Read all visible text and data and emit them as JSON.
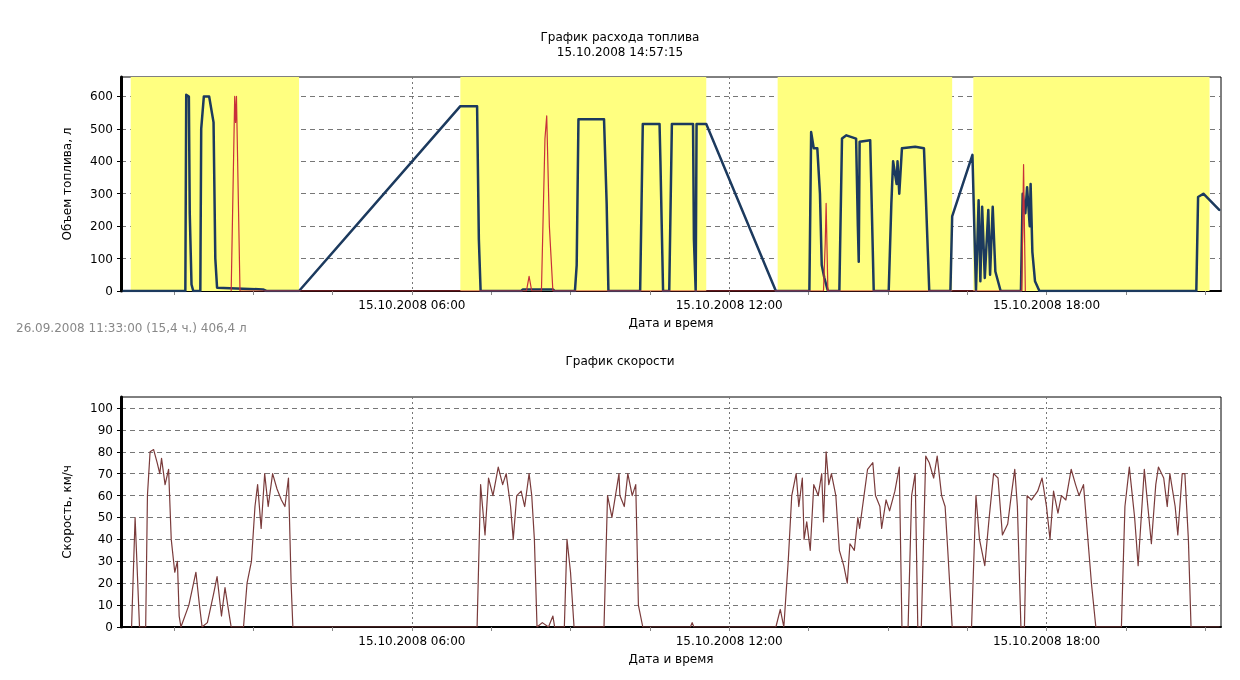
{
  "chart_data": [
    {
      "type": "line",
      "title": "График расхода топлива",
      "subtitle": "15.10.2008 14:57:15",
      "xlabel": "Дата и время",
      "ylabel": "Объем топлива, л",
      "annotations": [
        "26.09.2008 11:33:00 (15,4 ч.) 406,4 л"
      ],
      "xlim": [
        "2008-10-15T00:30",
        "2008-10-15T21:18"
      ],
      "xticks": [
        {
          "value": "2008-10-15T01:30",
          "label": null
        },
        {
          "value": "2008-10-15T03:00",
          "label": null
        },
        {
          "value": "2008-10-15T04:30",
          "label": null
        },
        {
          "value": "2008-10-15T06:00",
          "label": "15.10.2008 06:00"
        },
        {
          "value": "2008-10-15T07:30",
          "label": null
        },
        {
          "value": "2008-10-15T09:00",
          "label": null
        },
        {
          "value": "2008-10-15T10:30",
          "label": null
        },
        {
          "value": "2008-10-15T12:00",
          "label": "15.10.2008 12:00"
        },
        {
          "value": "2008-10-15T13:30",
          "label": null
        },
        {
          "value": "2008-10-15T15:00",
          "label": null
        },
        {
          "value": "2008-10-15T16:30",
          "label": null
        },
        {
          "value": "2008-10-15T18:00",
          "label": "15.10.2008 18:00"
        },
        {
          "value": "2008-10-15T19:30",
          "label": null
        },
        {
          "value": "2008-10-15T21:00",
          "label": null
        }
      ],
      "ylim": [
        0,
        660
      ],
      "yticks": [
        0,
        100,
        200,
        300,
        400,
        500,
        600
      ],
      "grid": true,
      "marker": "none",
      "bands": [
        {
          "axis": "x",
          "from": "2008-10-15T00:41",
          "to": "2008-10-15T03:52",
          "color": "#ffff80"
        },
        {
          "axis": "x",
          "from": "2008-10-15T06:55",
          "to": "2008-10-15T11:34",
          "color": "#ffff80"
        },
        {
          "axis": "x",
          "from": "2008-10-15T12:55",
          "to": "2008-10-15T16:13",
          "color": "#ffff80"
        },
        {
          "axis": "x",
          "from": "2008-10-15T16:37",
          "to": "2008-10-15T21:05",
          "color": "#ffff80"
        }
      ],
      "series": [
        {
          "color": "#1c3a5e",
          "x": [
            "2008-10-15T00:33",
            "2008-10-15T01:43",
            "2008-10-15T01:44",
            "2008-10-15T01:47",
            "2008-10-15T01:48",
            "2008-10-15T01:50",
            "2008-10-15T01:52",
            "2008-10-15T02:00",
            "2008-10-15T02:01",
            "2008-10-15T02:04",
            "2008-10-15T02:10",
            "2008-10-15T02:15",
            "2008-10-15T02:17",
            "2008-10-15T02:19",
            "2008-10-15T03:11",
            "2008-10-15T03:15",
            "2008-10-15T03:52",
            "2008-10-15T06:55",
            "2008-10-15T07:14",
            "2008-10-15T07:16",
            "2008-10-15T07:18",
            "2008-10-15T08:04",
            "2008-10-15T08:06",
            "2008-10-15T08:40",
            "2008-10-15T08:42",
            "2008-10-15T09:05",
            "2008-10-15T09:07",
            "2008-10-15T09:09",
            "2008-10-15T09:38",
            "2008-10-15T09:41",
            "2008-10-15T09:43",
            "2008-10-15T10:19",
            "2008-10-15T10:22",
            "2008-10-15T10:41",
            "2008-10-15T10:42",
            "2008-10-15T10:45",
            "2008-10-15T10:52",
            "2008-10-15T10:55",
            "2008-10-15T11:19",
            "2008-10-15T11:20",
            "2008-10-15T11:22",
            "2008-10-15T11:23",
            "2008-10-15T11:34",
            "2008-10-15T12:53",
            "2008-10-15T13:31",
            "2008-10-15T13:33",
            "2008-10-15T13:36",
            "2008-10-15T13:40",
            "2008-10-15T13:43",
            "2008-10-15T13:45",
            "2008-10-15T13:48",
            "2008-10-15T13:52",
            "2008-10-15T14:05",
            "2008-10-15T14:08",
            "2008-10-15T14:13",
            "2008-10-15T14:24",
            "2008-10-15T14:26",
            "2008-10-15T14:27",
            "2008-10-15T14:28",
            "2008-10-15T14:40",
            "2008-10-15T14:41",
            "2008-10-15T14:44",
            "2008-10-15T15:01",
            "2008-10-15T15:04",
            "2008-10-15T15:06",
            "2008-10-15T15:10",
            "2008-10-15T15:11",
            "2008-10-15T15:13",
            "2008-10-15T15:16",
            "2008-10-15T15:31",
            "2008-10-15T15:41",
            "2008-10-15T15:43",
            "2008-10-15T15:47",
            "2008-10-15T16:11",
            "2008-10-15T16:13",
            "2008-10-15T16:36",
            "2008-10-15T16:40",
            "2008-10-15T16:43",
            "2008-10-15T16:45",
            "2008-10-15T16:47",
            "2008-10-15T16:50",
            "2008-10-15T16:54",
            "2008-10-15T16:56",
            "2008-10-15T16:59",
            "2008-10-15T17:02",
            "2008-10-15T17:08",
            "2008-10-15T17:31",
            "2008-10-15T17:33",
            "2008-10-15T17:36",
            "2008-10-15T17:38",
            "2008-10-15T17:41",
            "2008-10-15T17:42",
            "2008-10-15T17:44",
            "2008-10-15T17:47",
            "2008-10-15T17:52",
            "2008-10-15T20:50",
            "2008-10-15T20:52",
            "2008-10-15T20:58",
            "2008-10-15T21:16"
          ],
          "values": [
            0,
            0,
            605,
            600,
            240,
            20,
            0,
            0,
            500,
            600,
            600,
            520,
            100,
            10,
            5,
            0,
            0,
            570,
            570,
            160,
            0,
            0,
            5,
            5,
            0,
            0,
            80,
            530,
            530,
            270,
            0,
            0,
            515,
            515,
            400,
            0,
            0,
            515,
            515,
            160,
            0,
            515,
            515,
            0,
            0,
            490,
            440,
            440,
            300,
            80,
            40,
            0,
            0,
            470,
            480,
            470,
            200,
            90,
            460,
            465,
            350,
            0,
            0,
            270,
            400,
            330,
            400,
            300,
            440,
            445,
            440,
            300,
            0,
            0,
            230,
            420,
            0,
            280,
            30,
            260,
            40,
            250,
            50,
            260,
            60,
            0,
            0,
            300,
            240,
            320,
            200,
            330,
            120,
            30,
            0,
            0,
            290,
            300,
            250
          ]
        },
        {
          "color": "#c8303a",
          "x": [
            "2008-10-15T02:35",
            "2008-10-15T02:39",
            "2008-10-15T02:40",
            "2008-10-15T02:41",
            "2008-10-15T02:45",
            "2008-10-15T08:10",
            "2008-10-15T08:13",
            "2008-10-15T08:16",
            "2008-10-15T08:27",
            "2008-10-15T08:31",
            "2008-10-15T08:33",
            "2008-10-15T08:36",
            "2008-10-15T08:40",
            "2008-10-15T13:47",
            "2008-10-15T13:49",
            "2008-10-15T13:50",
            "2008-10-15T13:52",
            "2008-10-15T17:32",
            "2008-10-15T17:34",
            "2008-10-15T17:36"
          ],
          "values": [
            0,
            600,
            520,
            600,
            0,
            0,
            45,
            0,
            0,
            470,
            540,
            200,
            0,
            0,
            150,
            270,
            0,
            0,
            390,
            0
          ]
        }
      ]
    },
    {
      "type": "line",
      "title": "График скорости",
      "xlabel": "Дата и время",
      "ylabel": "Скорость, км/ч",
      "xlim": [
        "2008-10-15T00:30",
        "2008-10-15T21:18"
      ],
      "xticks": [
        {
          "value": "2008-10-15T01:30",
          "label": null
        },
        {
          "value": "2008-10-15T03:00",
          "label": null
        },
        {
          "value": "2008-10-15T04:30",
          "label": null
        },
        {
          "value": "2008-10-15T06:00",
          "label": "15.10.2008 06:00"
        },
        {
          "value": "2008-10-15T07:30",
          "label": null
        },
        {
          "value": "2008-10-15T09:00",
          "label": null
        },
        {
          "value": "2008-10-15T10:30",
          "label": null
        },
        {
          "value": "2008-10-15T12:00",
          "label": "15.10.2008 12:00"
        },
        {
          "value": "2008-10-15T13:30",
          "label": null
        },
        {
          "value": "2008-10-15T15:00",
          "label": null
        },
        {
          "value": "2008-10-15T16:30",
          "label": null
        },
        {
          "value": "2008-10-15T18:00",
          "label": "15.10.2008 18:00"
        },
        {
          "value": "2008-10-15T19:30",
          "label": null
        },
        {
          "value": "2008-10-15T21:00",
          "label": null
        }
      ],
      "ylim": [
        0,
        105
      ],
      "yticks": [
        0,
        10,
        20,
        30,
        40,
        50,
        60,
        70,
        80,
        90,
        100
      ],
      "grid": true,
      "marker": "none",
      "series": [
        {
          "color": "#7a3b3b",
          "x": [
            "2008-10-15T00:42",
            "2008-10-15T00:46",
            "2008-10-15T00:51",
            "2008-10-15T00:58",
            "2008-10-15T01:00",
            "2008-10-15T01:03",
            "2008-10-15T01:07",
            "2008-10-15T01:11",
            "2008-10-15T01:14",
            "2008-10-15T01:16",
            "2008-10-15T01:20",
            "2008-10-15T01:24",
            "2008-10-15T01:27",
            "2008-10-15T01:31",
            "2008-10-15T01:34",
            "2008-10-15T01:36",
            "2008-10-15T01:38",
            "2008-10-15T01:47",
            "2008-10-15T01:55",
            "2008-10-15T01:59",
            "2008-10-15T02:02",
            "2008-10-15T02:08",
            "2008-10-15T02:15",
            "2008-10-15T02:19",
            "2008-10-15T02:24",
            "2008-10-15T02:28",
            "2008-10-15T02:33",
            "2008-10-15T02:35",
            "2008-10-15T02:49",
            "2008-10-15T02:53",
            "2008-10-15T02:58",
            "2008-10-15T03:02",
            "2008-10-15T03:05",
            "2008-10-15T03:09",
            "2008-10-15T03:13",
            "2008-10-15T03:17",
            "2008-10-15T03:22",
            "2008-10-15T03:27",
            "2008-10-15T03:32",
            "2008-10-15T03:36",
            "2008-10-15T03:40",
            "2008-10-15T03:43",
            "2008-10-15T03:45",
            "2008-10-15T07:14",
            "2008-10-15T07:18",
            "2008-10-15T07:23",
            "2008-10-15T07:27",
            "2008-10-15T07:32",
            "2008-10-15T07:38",
            "2008-10-15T07:43",
            "2008-10-15T07:47",
            "2008-10-15T07:52",
            "2008-10-15T07:55",
            "2008-10-15T07:59",
            "2008-10-15T08:04",
            "2008-10-15T08:08",
            "2008-10-15T08:13",
            "2008-10-15T08:16",
            "2008-10-15T08:19",
            "2008-10-15T08:22",
            "2008-10-15T08:28",
            "2008-10-15T08:35",
            "2008-10-15T08:40",
            "2008-10-15T08:42",
            "2008-10-15T08:53",
            "2008-10-15T08:56",
            "2008-10-15T09:00",
            "2008-10-15T09:04",
            "2008-10-15T09:38",
            "2008-10-15T09:42",
            "2008-10-15T09:47",
            "2008-10-15T09:55",
            "2008-10-15T09:56",
            "2008-10-15T10:01",
            "2008-10-15T10:05",
            "2008-10-15T10:10",
            "2008-10-15T10:14",
            "2008-10-15T10:17",
            "2008-10-15T10:22",
            "2008-10-15T11:16",
            "2008-10-15T11:18",
            "2008-10-15T11:20",
            "2008-10-15T12:53",
            "2008-10-15T12:58",
            "2008-10-15T13:02",
            "2008-10-15T13:07",
            "2008-10-15T13:11",
            "2008-10-15T13:16",
            "2008-10-15T13:19",
            "2008-10-15T13:23",
            "2008-10-15T13:25",
            "2008-10-15T13:28",
            "2008-10-15T13:32",
            "2008-10-15T13:36",
            "2008-10-15T13:41",
            "2008-10-15T13:45",
            "2008-10-15T13:47",
            "2008-10-15T13:50",
            "2008-10-15T13:53",
            "2008-10-15T13:56",
            "2008-10-15T14:01",
            "2008-10-15T14:05",
            "2008-10-15T14:10",
            "2008-10-15T14:14",
            "2008-10-15T14:17",
            "2008-10-15T14:22",
            "2008-10-15T14:26",
            "2008-10-15T14:28",
            "2008-10-15T14:33",
            "2008-10-15T14:37",
            "2008-10-15T14:43",
            "2008-10-15T14:46",
            "2008-10-15T14:51",
            "2008-10-15T14:53",
            "2008-10-15T14:58",
            "2008-10-15T15:02",
            "2008-10-15T15:08",
            "2008-10-15T15:13",
            "2008-10-15T15:16",
            "2008-10-15T15:23",
            "2008-10-15T15:27",
            "2008-10-15T15:31",
            "2008-10-15T15:34",
            "2008-10-15T15:38",
            "2008-10-15T15:43",
            "2008-10-15T15:47",
            "2008-10-15T15:52",
            "2008-10-15T15:56",
            "2008-10-15T16:01",
            "2008-10-15T16:05",
            "2008-10-15T16:08",
            "2008-10-15T16:13",
            "2008-10-15T16:35",
            "2008-10-15T16:40",
            "2008-10-15T16:44",
            "2008-10-15T16:50",
            "2008-10-15T16:55",
            "2008-10-15T17:00",
            "2008-10-15T17:05",
            "2008-10-15T17:10",
            "2008-10-15T17:16",
            "2008-10-15T17:20",
            "2008-10-15T17:24",
            "2008-10-15T17:27",
            "2008-10-15T17:31",
            "2008-10-15T17:35",
            "2008-10-15T17:38",
            "2008-10-15T17:43",
            "2008-10-15T17:50",
            "2008-10-15T17:55",
            "2008-10-15T18:00",
            "2008-10-15T18:04",
            "2008-10-15T18:08",
            "2008-10-15T18:13",
            "2008-10-15T18:17",
            "2008-10-15T18:22",
            "2008-10-15T18:28",
            "2008-10-15T18:33",
            "2008-10-15T18:37",
            "2008-10-15T18:42",
            "2008-10-15T18:46",
            "2008-10-15T18:51",
            "2008-10-15T18:56",
            "2008-10-15T19:25",
            "2008-10-15T19:29",
            "2008-10-15T19:34",
            "2008-10-15T19:40",
            "2008-10-15T19:44",
            "2008-10-15T19:51",
            "2008-10-15T19:55",
            "2008-10-15T19:59",
            "2008-10-15T20:04",
            "2008-10-15T20:07",
            "2008-10-15T20:13",
            "2008-10-15T20:17",
            "2008-10-15T20:20",
            "2008-10-15T20:26",
            "2008-10-15T20:29",
            "2008-10-15T20:34",
            "2008-10-15T20:37",
            "2008-10-15T20:41",
            "2008-10-15T20:44",
            "2008-10-15T21:16"
          ],
          "values": [
            0,
            50,
            0,
            0,
            60,
            80,
            81,
            75,
            70,
            77,
            65,
            72,
            40,
            25,
            30,
            5,
            0,
            10,
            25,
            10,
            0,
            2,
            15,
            23,
            5,
            18,
            5,
            0,
            0,
            20,
            30,
            55,
            65,
            45,
            70,
            55,
            70,
            63,
            58,
            55,
            68,
            20,
            0,
            0,
            65,
            42,
            68,
            60,
            73,
            65,
            70,
            55,
            40,
            60,
            62,
            55,
            70,
            60,
            40,
            0,
            2,
            0,
            5,
            0,
            0,
            40,
            25,
            0,
            0,
            60,
            50,
            70,
            60,
            55,
            70,
            60,
            65,
            10,
            0,
            0,
            2,
            0,
            0,
            8,
            0,
            30,
            60,
            70,
            55,
            68,
            40,
            48,
            35,
            65,
            60,
            70,
            48,
            80,
            65,
            70,
            60,
            35,
            28,
            20,
            38,
            35,
            50,
            45,
            60,
            72,
            75,
            60,
            55,
            45,
            58,
            53,
            62,
            73,
            0,
            0,
            60,
            70,
            0,
            0,
            78,
            75,
            68,
            78,
            60,
            55,
            35,
            0,
            0,
            60,
            40,
            28,
            50,
            70,
            68,
            42,
            47,
            60,
            72,
            55,
            0,
            0,
            60,
            58,
            62,
            68,
            55,
            40,
            62,
            52,
            60,
            58,
            72,
            65,
            60,
            65,
            45,
            20,
            0,
            0,
            55,
            73,
            50,
            28,
            72,
            55,
            38,
            65,
            73,
            68,
            55,
            70,
            55,
            42,
            70,
            70,
            40,
            0,
            0
          ]
        }
      ]
    }
  ]
}
